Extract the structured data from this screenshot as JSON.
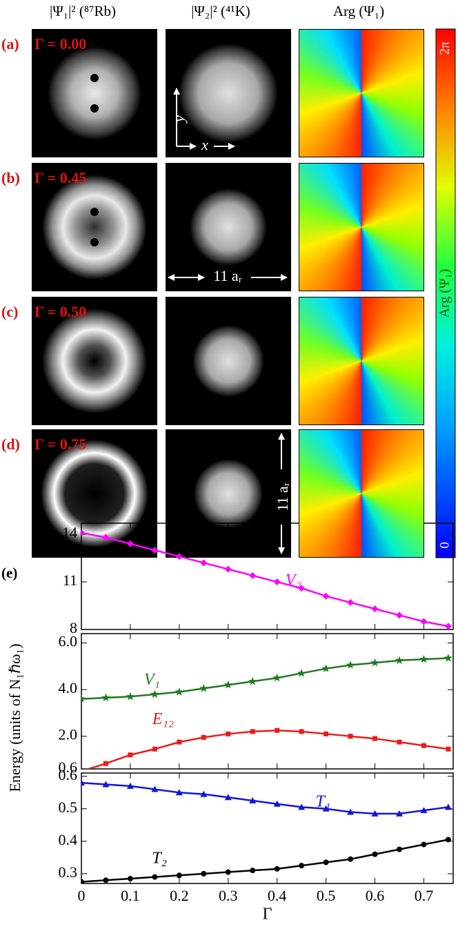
{
  "column_headers": [
    "|Ψ₁|² (⁸⁷Rb)",
    "|Ψ₂|² (⁴¹K)",
    "Arg (Ψ₁)"
  ],
  "rows": [
    {
      "label": "(a)",
      "gamma": "Γ = 0.00"
    },
    {
      "label": "(b)",
      "gamma": "Γ = 0.45"
    },
    {
      "label": "(c)",
      "gamma": "Γ = 0.50"
    },
    {
      "label": "(d)",
      "gamma": "Γ = 0.75"
    }
  ],
  "annotations": {
    "y_arrow": "y",
    "x_arrow": "x",
    "width": "11 aᵣ",
    "height": "11 aᵣ"
  },
  "colorbar": {
    "top": "2π",
    "bottom": "0",
    "label": "Arg (Ψ₁)"
  },
  "panel_label": "(e)",
  "chart_data": [
    {
      "type": "line",
      "x": [
        0,
        0.05,
        0.1,
        0.15,
        0.2,
        0.25,
        0.3,
        0.35,
        0.4,
        0.45,
        0.5,
        0.55,
        0.6,
        0.65,
        0.7,
        0.75
      ],
      "xlim": [
        0,
        0.76
      ],
      "xticks": [
        0,
        0.1,
        0.2,
        0.3,
        0.4,
        0.5,
        0.6,
        0.7
      ],
      "ylim": [
        8,
        14.7
      ],
      "yticks": [
        8,
        11,
        14
      ],
      "series": [
        {
          "name": "V₂",
          "color": "#ff00ff",
          "marker": "diamond",
          "values": [
            14.1,
            13.8,
            13.4,
            13.0,
            12.6,
            12.2,
            11.8,
            11.4,
            11.0,
            10.6,
            10.1,
            9.7,
            9.3,
            8.9,
            8.5,
            8.2
          ]
        }
      ]
    },
    {
      "type": "line",
      "x": [
        0,
        0.05,
        0.1,
        0.15,
        0.2,
        0.25,
        0.3,
        0.35,
        0.4,
        0.45,
        0.5,
        0.55,
        0.6,
        0.65,
        0.7,
        0.75
      ],
      "xlim": [
        0,
        0.76
      ],
      "xticks": [
        0,
        0.1,
        0.2,
        0.3,
        0.4,
        0.5,
        0.6,
        0.7
      ],
      "ylim": [
        0.6,
        6.4
      ],
      "yticks": [
        0.6,
        {
          "value": 2,
          "label": "2.0"
        },
        {
          "value": 4,
          "label": "4.0"
        },
        {
          "value": 6,
          "label": "6.0"
        }
      ],
      "ylabel": "Energy (units of N₁ℏω₁)",
      "series": [
        {
          "name": "V₁",
          "color": "#1f7a1f",
          "marker": "star",
          "values": [
            3.6,
            3.65,
            3.7,
            3.8,
            3.9,
            4.05,
            4.2,
            4.35,
            4.5,
            4.7,
            4.9,
            5.05,
            5.15,
            5.25,
            5.3,
            5.35
          ]
        },
        {
          "name": "E₁₂",
          "color": "#f01818",
          "marker": "square",
          "values": [
            0.5,
            0.83,
            1.2,
            1.45,
            1.75,
            1.95,
            2.1,
            2.2,
            2.25,
            2.2,
            2.1,
            2.0,
            1.9,
            1.75,
            1.6,
            1.45
          ]
        }
      ]
    },
    {
      "type": "line",
      "x": [
        0,
        0.05,
        0.1,
        0.15,
        0.2,
        0.25,
        0.3,
        0.35,
        0.4,
        0.45,
        0.5,
        0.55,
        0.6,
        0.65,
        0.7,
        0.75
      ],
      "xlim": [
        0,
        0.76
      ],
      "xticks": [
        0,
        0.1,
        0.2,
        0.3,
        0.4,
        0.5,
        0.6,
        0.7
      ],
      "ylim": [
        0.27,
        0.61
      ],
      "yticks": [
        0.3,
        0.4,
        0.5,
        0.6
      ],
      "xlabel": "Γ",
      "series": [
        {
          "name": "T₁",
          "color": "#1414e0",
          "marker": "triangle",
          "values": [
            0.58,
            0.575,
            0.57,
            0.56,
            0.55,
            0.545,
            0.535,
            0.525,
            0.515,
            0.505,
            0.5,
            0.49,
            0.485,
            0.485,
            0.495,
            0.505
          ]
        },
        {
          "name": "T₂",
          "color": "#000000",
          "marker": "circle",
          "values": [
            0.275,
            0.28,
            0.285,
            0.29,
            0.295,
            0.3,
            0.305,
            0.31,
            0.315,
            0.325,
            0.335,
            0.345,
            0.36,
            0.375,
            0.39,
            0.405
          ]
        }
      ]
    }
  ]
}
